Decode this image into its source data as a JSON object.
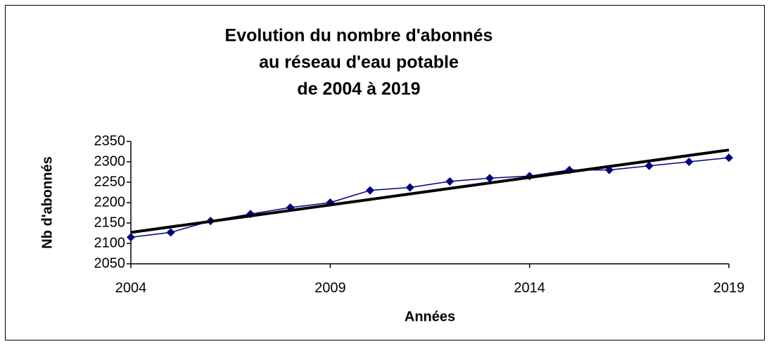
{
  "chart_data": {
    "type": "line",
    "title": [
      "Evolution du nombre d'abonnés",
      "au réseau d'eau potable",
      "de 2004 à 2019"
    ],
    "xlabel": "Années",
    "ylabel": "Nb d'abonnés",
    "x": [
      2004,
      2005,
      2006,
      2007,
      2008,
      2009,
      2010,
      2011,
      2012,
      2013,
      2014,
      2015,
      2016,
      2017,
      2018,
      2019
    ],
    "series": [
      {
        "color": "#000080",
        "values": [
          2115,
          2127,
          2155,
          2172,
          2188,
          2200,
          2230,
          2237,
          2252,
          2260,
          2265,
          2280,
          2280,
          2290,
          2300,
          2310
        ]
      }
    ],
    "trendline": {
      "x": [
        2004,
        2019
      ],
      "values": [
        2127,
        2329
      ],
      "color": "#000000"
    },
    "xlim": [
      2004,
      2019
    ],
    "xticks": [
      2004,
      2009,
      2014,
      2019
    ],
    "ylim": [
      2050,
      2350
    ],
    "yticks": [
      2050,
      2100,
      2150,
      2200,
      2250,
      2300,
      2350
    ]
  }
}
